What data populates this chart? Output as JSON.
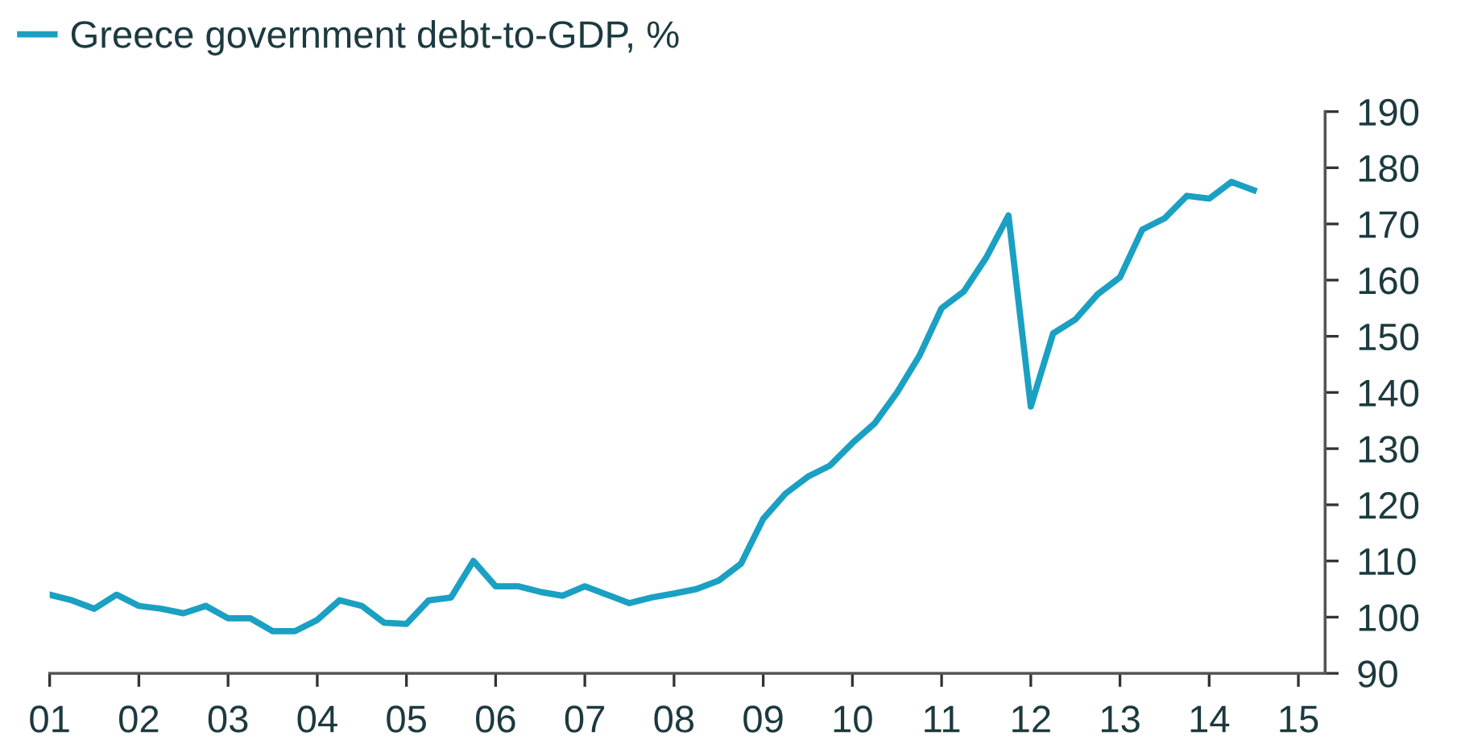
{
  "chart_data": {
    "type": "line",
    "legend": "top left",
    "grid": false,
    "marker": "none",
    "line_style": "solid",
    "x": [
      2001.0,
      2001.25,
      2001.5,
      2001.75,
      2002.0,
      2002.25,
      2002.5,
      2002.75,
      2003.0,
      2003.25,
      2003.5,
      2003.75,
      2004.0,
      2004.25,
      2004.5,
      2004.75,
      2005.0,
      2005.25,
      2005.5,
      2005.75,
      2006.0,
      2006.25,
      2006.5,
      2006.75,
      2007.0,
      2007.25,
      2007.5,
      2007.75,
      2008.0,
      2008.25,
      2008.5,
      2008.75,
      2009.0,
      2009.25,
      2009.5,
      2009.75,
      2010.0,
      2010.25,
      2010.5,
      2010.75,
      2011.0,
      2011.25,
      2011.5,
      2011.75,
      2012.0,
      2012.25,
      2012.5,
      2012.75,
      2013.0,
      2013.25,
      2013.5,
      2013.75,
      2014.0,
      2014.25,
      2014.5
    ],
    "series": [
      {
        "name": "Greece government debt-to-GDP, %",
        "color": "#1aa0c2",
        "values": [
          104,
          103,
          101.5,
          104,
          102,
          101.5,
          100.7,
          102,
          99.8,
          99.8,
          97.5,
          97.5,
          99.5,
          103,
          102,
          99,
          98.8,
          103,
          103.5,
          110,
          105.5,
          105.5,
          104.5,
          103.8,
          105.5,
          104,
          102.5,
          103.5,
          104.2,
          105,
          106.5,
          109.5,
          117.5,
          122,
          125,
          127,
          131,
          134.5,
          140,
          146.5,
          155,
          158,
          164,
          171.5,
          137.5,
          150.5,
          153,
          157.5,
          160.5,
          169,
          171,
          175,
          174.5,
          177.5,
          176
        ]
      }
    ],
    "xlim": [
      2001,
      2015.3
    ],
    "xticks": [
      {
        "value": 2001,
        "label": "01"
      },
      {
        "value": 2002,
        "label": "02"
      },
      {
        "value": 2003,
        "label": "03"
      },
      {
        "value": 2004,
        "label": "04"
      },
      {
        "value": 2005,
        "label": "05"
      },
      {
        "value": 2006,
        "label": "06"
      },
      {
        "value": 2007,
        "label": "07"
      },
      {
        "value": 2008,
        "label": "08"
      },
      {
        "value": 2009,
        "label": "09"
      },
      {
        "value": 2010,
        "label": "10"
      },
      {
        "value": 2011,
        "label": "11"
      },
      {
        "value": 2012,
        "label": "12"
      },
      {
        "value": 2013,
        "label": "13"
      },
      {
        "value": 2014,
        "label": "14"
      },
      {
        "value": 2015,
        "label": "15"
      }
    ],
    "ylim": [
      90,
      190
    ],
    "yticks": [
      90,
      100,
      110,
      120,
      130,
      140,
      150,
      160,
      170,
      180,
      190
    ]
  }
}
